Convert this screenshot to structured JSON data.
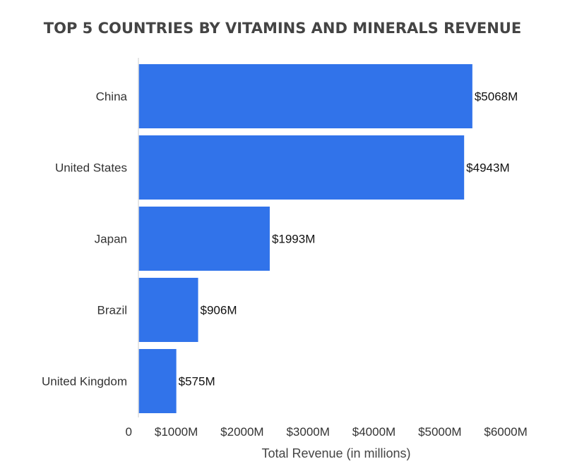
{
  "chart_data": {
    "type": "bar",
    "orientation": "horizontal",
    "title": "TOP 5 COUNTRIES BY VITAMINS AND MINERALS REVENUE",
    "xlabel": "Total Revenue (in millions)",
    "ylabel": "",
    "categories": [
      "China",
      "United States",
      "Japan",
      "Brazil",
      "United Kingdom"
    ],
    "values": [
      5068,
      4943,
      1993,
      906,
      575
    ],
    "data_labels": [
      "$5068M",
      "$4943M",
      "$1993M",
      "$906M",
      "$575M"
    ],
    "xlim": [
      0,
      6000
    ],
    "x_ticks": [
      0,
      1000,
      2000,
      3000,
      4000,
      5000,
      6000
    ],
    "x_tick_labels": [
      "0",
      "$1000M",
      "$2000M",
      "$3000M",
      "$4000M",
      "$5000M",
      "$6000M"
    ],
    "grid": false,
    "legend": "none",
    "bar_color": "#3173EA"
  }
}
